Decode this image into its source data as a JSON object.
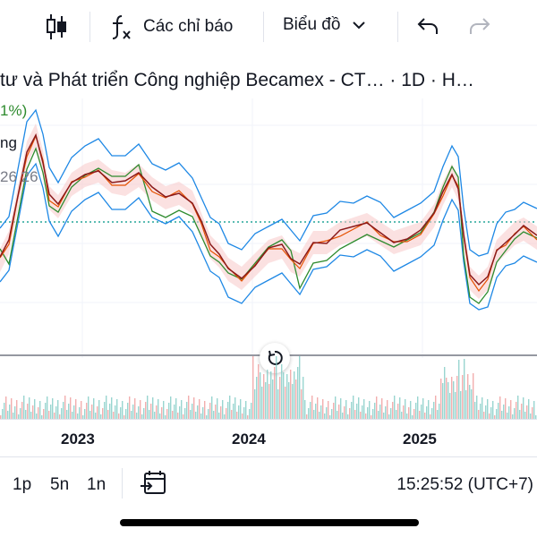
{
  "toolbar": {
    "candle_icon": "candlestick-icon",
    "indicators_icon": "function-icon",
    "indicators_label": "Các chỉ báo",
    "chart_type_label": "Biểu đồ",
    "undo_icon": "undo-icon",
    "redo_icon": "redo-icon"
  },
  "title": {
    "text": "tư và Phát triển Công nghiệp Becamex - CT… · 1D · H…"
  },
  "legend": {
    "line1": "1%)",
    "line2": "ng",
    "line3": "26  26"
  },
  "time_axis": {
    "labels": [
      "2023",
      "2024",
      "2025"
    ]
  },
  "bottom": {
    "intervals": [
      "1p",
      "5n",
      "1n"
    ],
    "calendar_icon": "calendar-goto-icon",
    "clock": "15:25:52 (UTC+7)"
  },
  "colors": {
    "price": "#8b1a1a",
    "ma_short": "#e65100",
    "ma_green": "#2e8b2e",
    "bb": "#1e88e5",
    "cloud_red": "#f8c9c9",
    "cloud_green": "#c8e6c9",
    "dotted": "#26a69a"
  }
}
